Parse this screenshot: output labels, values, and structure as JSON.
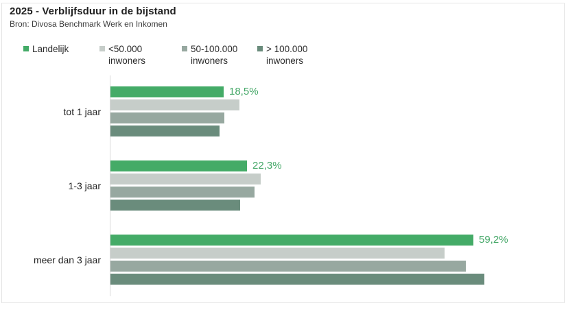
{
  "title": "2025 - Verblijfsduur in de bijstand",
  "subtitle": "Bron: Divosa Benchmark Werk en Inkomen",
  "colors": {
    "landelijk_green": "#44ab67",
    "lt50k_lightgray": "#c6cdc9",
    "mid50_100k_gray": "#97a8a0",
    "gt100k_darkgreen": "#6a8c7c",
    "value_label_green": "#44a767",
    "axis_line": "#d9d9d9",
    "frame_border": "#e4e4e4"
  },
  "legend": [
    {
      "line1": "Landelijk",
      "line2": "",
      "color": "#44ab67"
    },
    {
      "line1": "<50.000",
      "line2": "inwoners",
      "color": "#c6cdc9"
    },
    {
      "line1": "50-100.000",
      "line2": "inwoners",
      "color": "#97a8a0"
    },
    {
      "line1": "> 100.000",
      "line2": "inwoners",
      "color": "#6a8c7c"
    }
  ],
  "chart_data": {
    "type": "bar",
    "orientation": "horizontal",
    "title": "2025 - Verblijfsduur in de bijstand",
    "subtitle": "Bron: Divosa Benchmark Werk en Inkomen",
    "categories": [
      "tot 1 jaar",
      "1-3 jaar",
      "meer dan 3 jaar"
    ],
    "series": [
      {
        "name": "Landelijk",
        "color": "#44ab67",
        "values": [
          18.5,
          22.3,
          59.2
        ],
        "value_labels": [
          "18,5%",
          "22,3%",
          "59,2%"
        ]
      },
      {
        "name": "<50.000 inwoners",
        "color": "#c6cdc9",
        "values": [
          21.0,
          24.5,
          54.5
        ]
      },
      {
        "name": "50-100.000 inwoners",
        "color": "#97a8a0",
        "values": [
          18.6,
          23.5,
          58.0
        ]
      },
      {
        "name": "> 100.000 inwoners",
        "color": "#6a8c7c",
        "values": [
          17.8,
          21.2,
          61.0
        ]
      }
    ],
    "value_axis": {
      "min": 0,
      "max_visible": 65,
      "unit": "%"
    },
    "grid": false,
    "legend_position": "top",
    "annotated_series": "Landelijk"
  }
}
